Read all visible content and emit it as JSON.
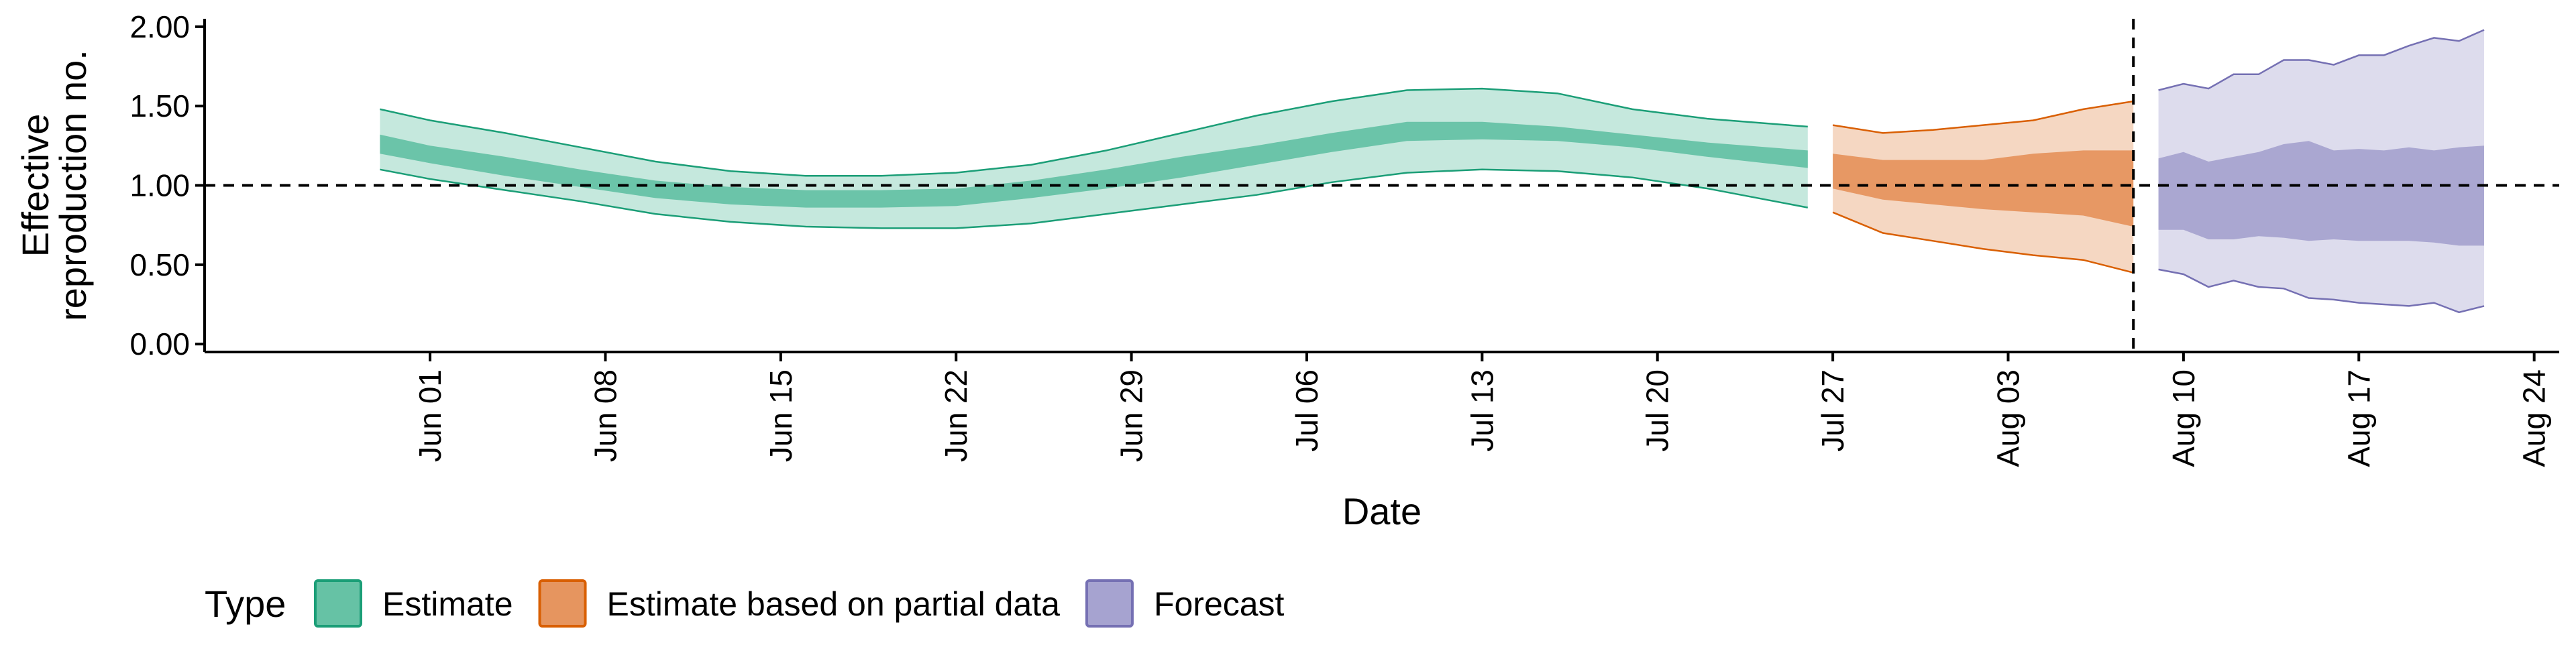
{
  "chart_data": {
    "type": "area",
    "xlabel": "Date",
    "ylabel_lines": [
      "Effective",
      "reproduction no."
    ],
    "ylim": [
      -0.05,
      2.05
    ],
    "yticks": [
      0.0,
      0.5,
      1.0,
      1.5,
      2.0
    ],
    "ytick_labels": [
      "0.00",
      "0.50",
      "1.00",
      "1.50",
      "2.00"
    ],
    "xlim": [
      "2020-05-23",
      "2020-08-25"
    ],
    "xtick_dates": [
      "2020-06-01",
      "2020-06-08",
      "2020-06-15",
      "2020-06-22",
      "2020-06-29",
      "2020-07-06",
      "2020-07-13",
      "2020-07-20",
      "2020-07-27",
      "2020-08-03",
      "2020-08-10",
      "2020-08-17",
      "2020-08-24"
    ],
    "xtick_labels": [
      "Jun 01",
      "Jun 08",
      "Jun 15",
      "Jun 22",
      "Jun 29",
      "Jul 06",
      "Jul 13",
      "Jul 20",
      "Jul 27",
      "Aug 03",
      "Aug 10",
      "Aug 17",
      "Aug 24"
    ],
    "hline_y": 1.0,
    "vline_date": "2020-08-08",
    "grid": false,
    "legend": {
      "title": "Type",
      "position": "bottom",
      "items": [
        "Estimate",
        "Estimate based on partial data",
        "Forecast"
      ]
    },
    "series": [
      {
        "name": "Estimate",
        "fill": "#66c2a5",
        "stroke": "#1b9e77",
        "dates": [
          "2020-05-30",
          "2020-06-01",
          "2020-06-04",
          "2020-06-07",
          "2020-06-10",
          "2020-06-13",
          "2020-06-16",
          "2020-06-19",
          "2020-06-22",
          "2020-06-25",
          "2020-06-28",
          "2020-07-01",
          "2020-07-04",
          "2020-07-07",
          "2020-07-10",
          "2020-07-13",
          "2020-07-16",
          "2020-07-19",
          "2020-07-22",
          "2020-07-26"
        ],
        "lower90": [
          1.1,
          1.04,
          0.97,
          0.9,
          0.82,
          0.77,
          0.74,
          0.73,
          0.73,
          0.76,
          0.82,
          0.88,
          0.94,
          1.02,
          1.08,
          1.1,
          1.09,
          1.05,
          0.98,
          0.86
        ],
        "lower50": [
          1.2,
          1.14,
          1.06,
          0.99,
          0.92,
          0.88,
          0.86,
          0.86,
          0.87,
          0.92,
          0.98,
          1.05,
          1.13,
          1.21,
          1.28,
          1.29,
          1.28,
          1.24,
          1.18,
          1.11
        ],
        "upper50": [
          1.32,
          1.25,
          1.18,
          1.1,
          1.03,
          0.99,
          0.97,
          0.97,
          0.98,
          1.03,
          1.1,
          1.18,
          1.25,
          1.33,
          1.4,
          1.4,
          1.37,
          1.32,
          1.27,
          1.22
        ],
        "upper90": [
          1.48,
          1.41,
          1.33,
          1.24,
          1.15,
          1.09,
          1.06,
          1.06,
          1.08,
          1.13,
          1.22,
          1.33,
          1.44,
          1.53,
          1.6,
          1.61,
          1.58,
          1.48,
          1.42,
          1.37
        ]
      },
      {
        "name": "Estimate based on partial data",
        "fill": "#e6955f",
        "stroke": "#d95f02",
        "dates": [
          "2020-07-27",
          "2020-07-29",
          "2020-07-31",
          "2020-08-02",
          "2020-08-04",
          "2020-08-06",
          "2020-08-08"
        ],
        "lower90": [
          0.83,
          0.7,
          0.65,
          0.6,
          0.56,
          0.53,
          0.45
        ],
        "lower50": [
          0.98,
          0.91,
          0.88,
          0.85,
          0.83,
          0.81,
          0.74
        ],
        "upper50": [
          1.2,
          1.16,
          1.16,
          1.16,
          1.2,
          1.22,
          1.22
        ],
        "upper90": [
          1.38,
          1.33,
          1.35,
          1.38,
          1.41,
          1.48,
          1.53
        ]
      },
      {
        "name": "Forecast",
        "fill": "#a6a3d0",
        "stroke": "#7570b3",
        "dates": [
          "2020-08-09",
          "2020-08-10",
          "2020-08-11",
          "2020-08-12",
          "2020-08-13",
          "2020-08-14",
          "2020-08-15",
          "2020-08-16",
          "2020-08-17",
          "2020-08-18",
          "2020-08-19",
          "2020-08-20",
          "2020-08-21",
          "2020-08-22"
        ],
        "lower90": [
          0.47,
          0.44,
          0.36,
          0.4,
          0.36,
          0.35,
          0.29,
          0.28,
          0.26,
          0.25,
          0.24,
          0.26,
          0.2,
          0.24
        ],
        "lower50": [
          0.72,
          0.72,
          0.66,
          0.66,
          0.68,
          0.67,
          0.65,
          0.66,
          0.65,
          0.65,
          0.65,
          0.64,
          0.62,
          0.62
        ],
        "upper50": [
          1.17,
          1.21,
          1.15,
          1.18,
          1.21,
          1.26,
          1.28,
          1.22,
          1.23,
          1.22,
          1.24,
          1.22,
          1.24,
          1.25
        ],
        "upper90": [
          1.6,
          1.64,
          1.61,
          1.7,
          1.7,
          1.79,
          1.79,
          1.76,
          1.82,
          1.82,
          1.88,
          1.93,
          1.91,
          1.98
        ]
      }
    ]
  }
}
